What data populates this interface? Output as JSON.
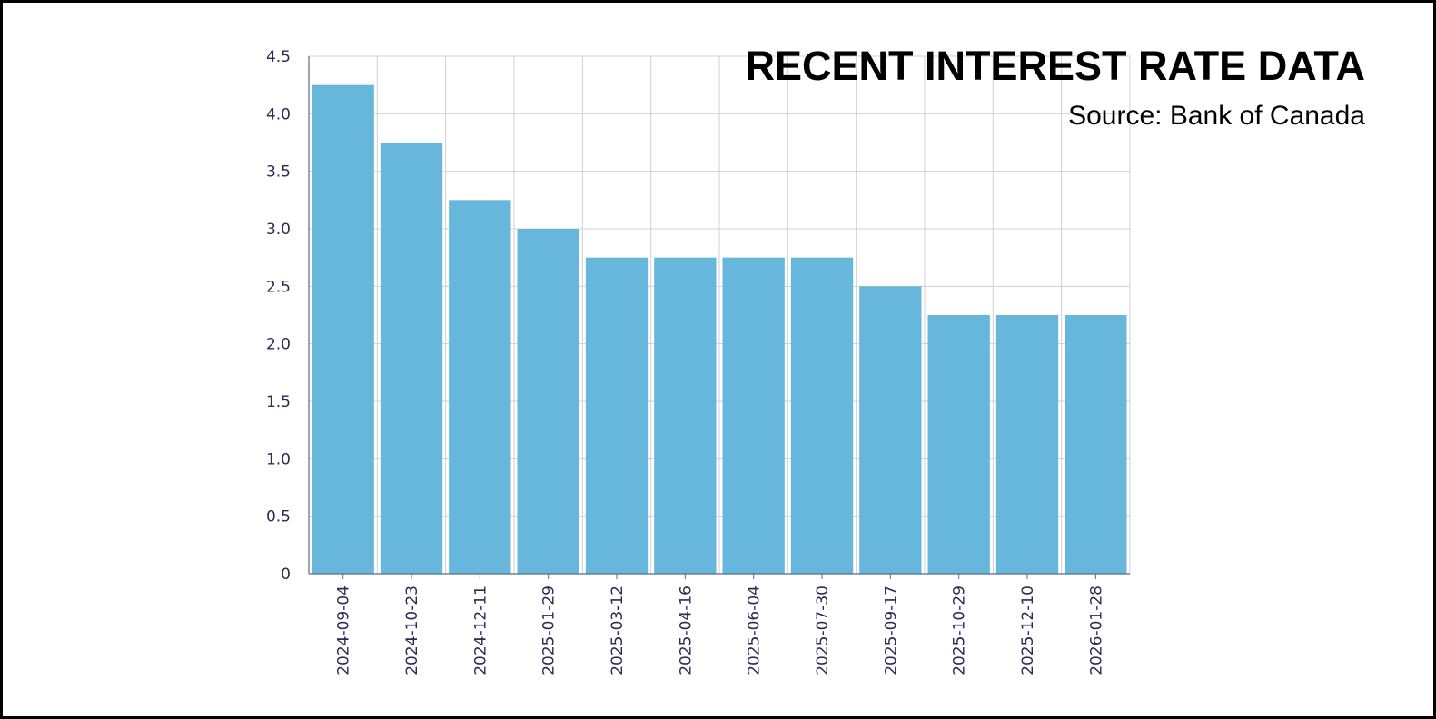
{
  "chart_data": {
    "type": "bar",
    "title": "RECENT INTEREST RATE DATA",
    "subtitle": "Source: Bank of Canada",
    "categories": [
      "2024-09-04",
      "2024-10-23",
      "2024-12-11",
      "2025-01-29",
      "2025-03-12",
      "2025-04-16",
      "2025-06-04",
      "2025-07-30",
      "2025-09-17",
      "2025-10-29",
      "2025-12-10",
      "2026-01-28"
    ],
    "values": [
      4.25,
      3.75,
      3.25,
      3.0,
      2.75,
      2.75,
      2.75,
      2.75,
      2.5,
      2.25,
      2.25,
      2.25
    ],
    "yticks": [
      "0",
      "0.5",
      "1.0",
      "1.5",
      "2.0",
      "2.5",
      "3.0",
      "3.5",
      "4.0",
      "4.5"
    ],
    "ylim": [
      0,
      4.5
    ],
    "grid": true,
    "bar_color": "#67b6db",
    "grid_color": "#d0d0d0",
    "axis_color": "#5a6a8a"
  }
}
